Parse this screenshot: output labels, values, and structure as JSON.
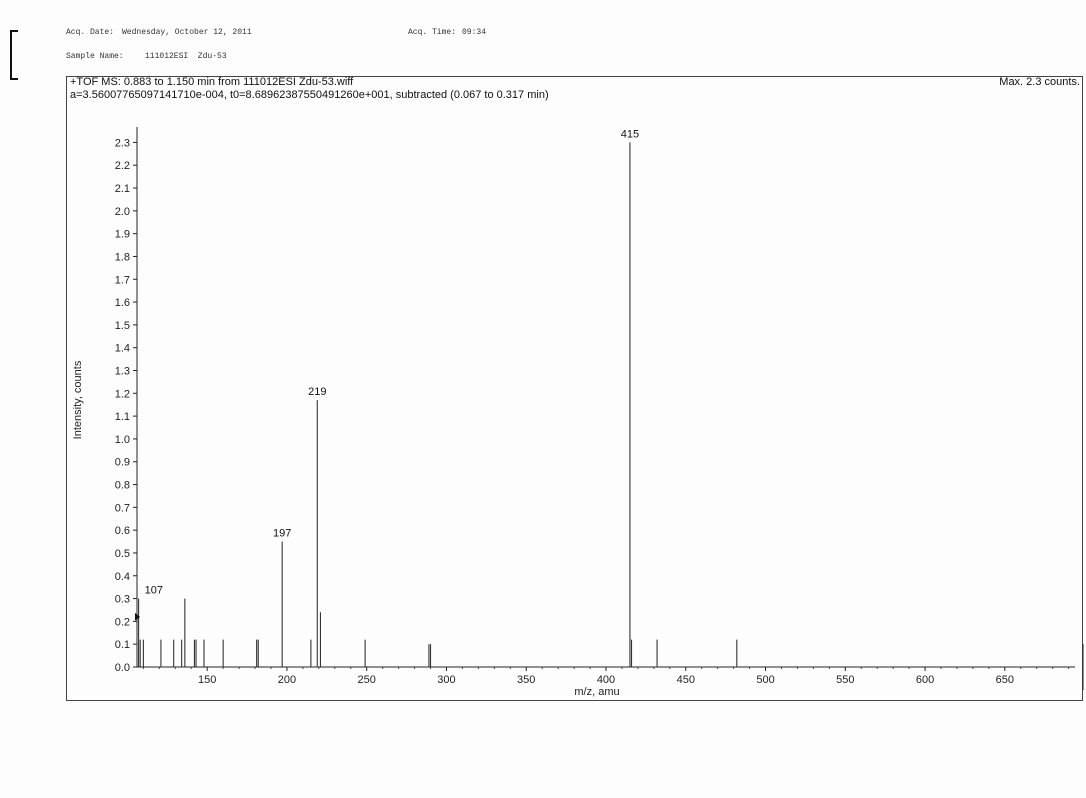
{
  "header": {
    "acq_date_label": "Acq. Date:",
    "acq_date": "Wednesday, October 12, 2011",
    "acq_time_label": "Acq. Time:",
    "acq_time": "09:34",
    "sample_name_label": "Sample Name:",
    "sample_name": "111012ESI  Zdu-53"
  },
  "chart_data": {
    "type": "bar",
    "title": "+TOF MS: 0.883 to 1.150 min from 111012ESI  Zdu-53.wiff",
    "subtitle": "a=3.56007765097141710e-004, t0=8.68962387550491260e+001, subtracted (0.067 to 0.317 min)",
    "max_label": "Max. 2.3 counts.",
    "xlabel": "m/z, amu",
    "ylabel": "Intensity, counts",
    "xlim": [
      106,
      694
    ],
    "ylim": [
      0,
      2.35
    ],
    "xticks": [
      150,
      200,
      250,
      300,
      350,
      400,
      450,
      500,
      550,
      600,
      650
    ],
    "yticks": [
      "0.0",
      "0.1",
      "0.2",
      "0.3",
      "0.4",
      "0.5",
      "0.6",
      "0.7",
      "0.8",
      "0.9",
      "1.0",
      "1.1",
      "1.2",
      "1.3",
      "1.4",
      "1.5",
      "1.6",
      "1.7",
      "1.8",
      "1.9",
      "2.0",
      "2.1",
      "2.2",
      "2.3"
    ],
    "peaks": [
      {
        "x": 107,
        "y": 0.3,
        "label": "107"
      },
      {
        "x": 108,
        "y": 0.12
      },
      {
        "x": 110,
        "y": 0.12
      },
      {
        "x": 121,
        "y": 0.12
      },
      {
        "x": 129,
        "y": 0.12
      },
      {
        "x": 134,
        "y": 0.12
      },
      {
        "x": 136,
        "y": 0.3
      },
      {
        "x": 142,
        "y": 0.12
      },
      {
        "x": 143,
        "y": 0.12
      },
      {
        "x": 148,
        "y": 0.12
      },
      {
        "x": 160,
        "y": 0.12
      },
      {
        "x": 181,
        "y": 0.12
      },
      {
        "x": 182,
        "y": 0.12
      },
      {
        "x": 197,
        "y": 0.55,
        "label": "197"
      },
      {
        "x": 215,
        "y": 0.12
      },
      {
        "x": 219,
        "y": 1.17,
        "label": "219"
      },
      {
        "x": 221,
        "y": 0.24
      },
      {
        "x": 249,
        "y": 0.12
      },
      {
        "x": 289,
        "y": 0.1
      },
      {
        "x": 290,
        "y": 0.1
      },
      {
        "x": 415,
        "y": 2.3,
        "label": "415"
      },
      {
        "x": 416,
        "y": 0.12
      },
      {
        "x": 432,
        "y": 0.12
      },
      {
        "x": 482,
        "y": 0.12
      }
    ]
  }
}
